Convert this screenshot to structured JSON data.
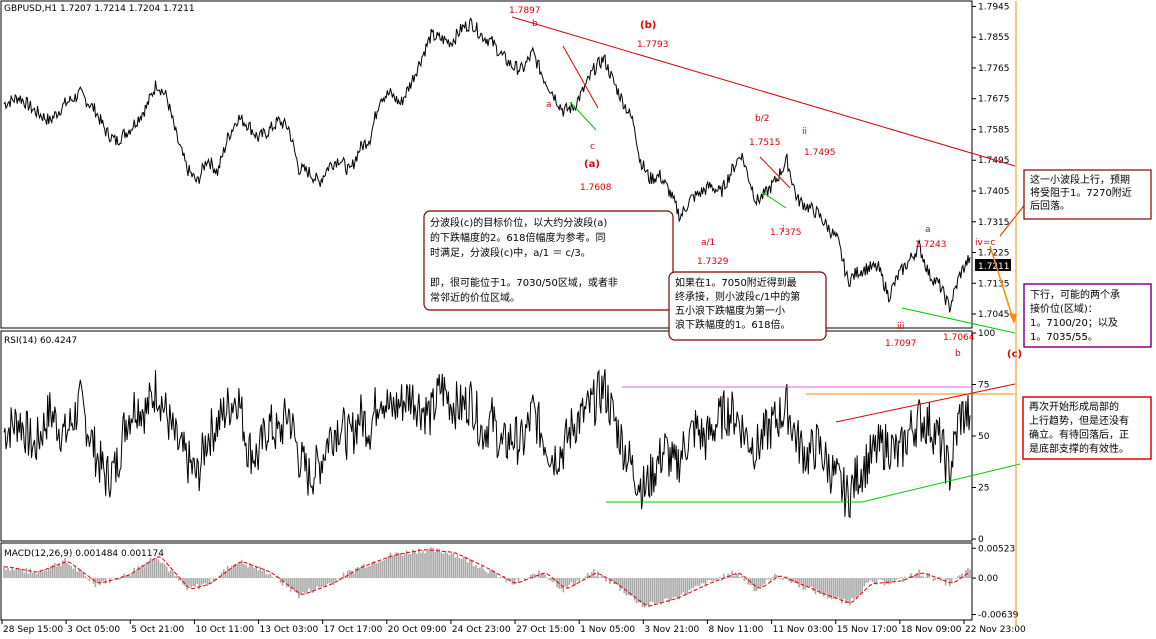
{
  "window": {
    "symbol_info": "GBPUSD,H1  1.7207  1.7214  1.7204  1.7211"
  },
  "colors": {
    "price": "#000000",
    "annot_red": "#e00000",
    "box_border": "#800000",
    "purple": "#8a008a",
    "green": "#00c800",
    "orange": "#ff8c00",
    "magenta": "#e060e0",
    "macd_hist": "#a9a9a9",
    "macd_signal": "#e00000",
    "current_price_bg": "#000000"
  },
  "chart_data": [
    {
      "type": "line",
      "name": "price",
      "yaxis_ticks": [
        "1.7945",
        "1.7855",
        "1.7765",
        "1.7675",
        "1.7585",
        "1.7495",
        "1.7405",
        "1.7315",
        "1.7225",
        "1.7135",
        "1.7045"
      ],
      "ylim": [
        1.701,
        1.7955
      ],
      "current_price": "1.7211",
      "waypoints": [
        [
          0,
          1.766
        ],
        [
          3,
          1.768
        ],
        [
          6,
          1.764
        ],
        [
          9,
          1.761
        ],
        [
          12,
          1.766
        ],
        [
          15,
          1.769
        ],
        [
          18,
          1.764
        ],
        [
          20,
          1.758
        ],
        [
          22,
          1.755
        ],
        [
          25,
          1.759
        ],
        [
          28,
          1.765
        ],
        [
          30,
          1.772
        ],
        [
          32,
          1.768
        ],
        [
          34,
          1.756
        ],
        [
          36,
          1.747
        ],
        [
          38,
          1.743
        ],
        [
          40,
          1.75
        ],
        [
          42,
          1.746
        ],
        [
          44,
          1.756
        ],
        [
          46,
          1.762
        ],
        [
          48,
          1.76
        ],
        [
          50,
          1.756
        ],
        [
          52,
          1.758
        ],
        [
          54,
          1.761
        ],
        [
          56,
          1.759
        ],
        [
          58,
          1.747
        ],
        [
          60,
          1.746
        ],
        [
          62,
          1.743
        ],
        [
          64,
          1.748
        ],
        [
          66,
          1.75
        ],
        [
          68,
          1.746
        ],
        [
          70,
          1.753
        ],
        [
          72,
          1.756
        ],
        [
          74,
          1.768
        ],
        [
          76,
          1.769
        ],
        [
          78,
          1.766
        ],
        [
          80,
          1.772
        ],
        [
          82,
          1.779
        ],
        [
          84,
          1.786
        ],
        [
          86,
          1.785
        ],
        [
          88,
          1.784
        ],
        [
          90,
          1.788
        ],
        [
          92,
          1.7897
        ],
        [
          94,
          1.786
        ],
        [
          96,
          1.784
        ],
        [
          98,
          1.78
        ],
        [
          100,
          1.777
        ],
        [
          102,
          1.776
        ],
        [
          104,
          1.781
        ],
        [
          106,
          1.774
        ],
        [
          108,
          1.769
        ],
        [
          110,
          1.764
        ],
        [
          112,
          1.765
        ],
        [
          114,
          1.77
        ],
        [
          116,
          1.776
        ],
        [
          118,
          1.7793
        ],
        [
          120,
          1.772
        ],
        [
          122,
          1.766
        ],
        [
          124,
          1.76
        ],
        [
          125,
          1.75
        ],
        [
          127,
          1.744
        ],
        [
          129,
          1.745
        ],
        [
          131,
          1.74
        ],
        [
          133,
          1.7329
        ],
        [
          135,
          1.738
        ],
        [
          137,
          1.74
        ],
        [
          139,
          1.742
        ],
        [
          141,
          1.74
        ],
        [
          143,
          1.746
        ],
        [
          145,
          1.7515
        ],
        [
          147,
          1.742
        ],
        [
          148,
          1.7375
        ],
        [
          150,
          1.74
        ],
        [
          152,
          1.744
        ],
        [
          154,
          1.7495
        ],
        [
          156,
          1.738
        ],
        [
          158,
          1.736
        ],
        [
          160,
          1.734
        ],
        [
          162,
          1.73
        ],
        [
          164,
          1.726
        ],
        [
          166,
          1.714
        ],
        [
          168,
          1.717
        ],
        [
          170,
          1.718
        ],
        [
          172,
          1.718
        ],
        [
          174,
          1.7097
        ],
        [
          176,
          1.716
        ],
        [
          178,
          1.72
        ],
        [
          180,
          1.7243
        ],
        [
          182,
          1.716
        ],
        [
          184,
          1.713
        ],
        [
          186,
          1.7064
        ],
        [
          188,
          1.716
        ],
        [
          190,
          1.7211
        ]
      ]
    },
    {
      "type": "line",
      "name": "RSI",
      "label": "RSI(14) 60.4247",
      "yaxis_ticks": [
        "100",
        "75",
        "50",
        "25",
        "0"
      ],
      "ylim": [
        0,
        100
      ],
      "waypoints": [
        [
          0,
          52
        ],
        [
          3,
          58
        ],
        [
          6,
          44
        ],
        [
          9,
          62
        ],
        [
          12,
          50
        ],
        [
          15,
          66
        ],
        [
          18,
          42
        ],
        [
          20,
          30
        ],
        [
          22,
          34
        ],
        [
          24,
          58
        ],
        [
          26,
          66
        ],
        [
          28,
          62
        ],
        [
          30,
          74
        ],
        [
          32,
          60
        ],
        [
          34,
          46
        ],
        [
          36,
          38
        ],
        [
          38,
          30
        ],
        [
          40,
          50
        ],
        [
          42,
          56
        ],
        [
          44,
          64
        ],
        [
          46,
          70
        ],
        [
          48,
          44
        ],
        [
          50,
          40
        ],
        [
          52,
          56
        ],
        [
          54,
          50
        ],
        [
          56,
          62
        ],
        [
          58,
          40
        ],
        [
          60,
          30
        ],
        [
          62,
          36
        ],
        [
          64,
          50
        ],
        [
          66,
          56
        ],
        [
          68,
          48
        ],
        [
          70,
          60
        ],
        [
          72,
          54
        ],
        [
          74,
          72
        ],
        [
          76,
          62
        ],
        [
          78,
          66
        ],
        [
          80,
          70
        ],
        [
          82,
          64
        ],
        [
          84,
          60
        ],
        [
          86,
          74
        ],
        [
          88,
          66
        ],
        [
          90,
          64
        ],
        [
          92,
          68
        ],
        [
          94,
          52
        ],
        [
          96,
          58
        ],
        [
          98,
          44
        ],
        [
          100,
          50
        ],
        [
          102,
          46
        ],
        [
          104,
          62
        ],
        [
          106,
          50
        ],
        [
          108,
          40
        ],
        [
          110,
          44
        ],
        [
          112,
          56
        ],
        [
          114,
          60
        ],
        [
          116,
          66
        ],
        [
          118,
          74
        ],
        [
          120,
          58
        ],
        [
          122,
          44
        ],
        [
          124,
          32
        ],
        [
          126,
          24
        ],
        [
          128,
          34
        ],
        [
          130,
          44
        ],
        [
          132,
          34
        ],
        [
          134,
          46
        ],
        [
          136,
          54
        ],
        [
          138,
          48
        ],
        [
          140,
          56
        ],
        [
          142,
          62
        ],
        [
          144,
          60
        ],
        [
          146,
          50
        ],
        [
          148,
          44
        ],
        [
          150,
          52
        ],
        [
          152,
          58
        ],
        [
          154,
          64
        ],
        [
          156,
          48
        ],
        [
          158,
          40
        ],
        [
          160,
          46
        ],
        [
          162,
          36
        ],
        [
          164,
          28
        ],
        [
          166,
          20
        ],
        [
          168,
          32
        ],
        [
          170,
          38
        ],
        [
          172,
          44
        ],
        [
          174,
          46
        ],
        [
          176,
          40
        ],
        [
          178,
          52
        ],
        [
          180,
          58
        ],
        [
          182,
          56
        ],
        [
          184,
          48
        ],
        [
          186,
          32
        ],
        [
          188,
          60
        ],
        [
          190,
          60
        ]
      ]
    },
    {
      "type": "bar",
      "name": "MACD",
      "label": "MACD(12,26,9)  0.001484  0.001174",
      "yaxis_ticks": [
        "0.00523",
        "0.00",
        "-0.00639"
      ],
      "ylim": [
        -0.007,
        0.0058
      ],
      "histogram_waypoints": [
        [
          0,
          0.002
        ],
        [
          6,
          0.001
        ],
        [
          12,
          0.003
        ],
        [
          18,
          -0.001
        ],
        [
          24,
          0.0005
        ],
        [
          30,
          0.004
        ],
        [
          36,
          -0.002
        ],
        [
          40,
          -0.001
        ],
        [
          46,
          0.003
        ],
        [
          52,
          0.001
        ],
        [
          58,
          -0.003
        ],
        [
          64,
          -0.001
        ],
        [
          70,
          0.002
        ],
        [
          76,
          0.004
        ],
        [
          82,
          0.005
        ],
        [
          88,
          0.0045
        ],
        [
          94,
          0.002
        ],
        [
          100,
          -0.001
        ],
        [
          106,
          0.001
        ],
        [
          110,
          -0.002
        ],
        [
          116,
          0.001
        ],
        [
          120,
          -0.001
        ],
        [
          126,
          -0.005
        ],
        [
          132,
          -0.0035
        ],
        [
          138,
          -0.001
        ],
        [
          144,
          0.001
        ],
        [
          148,
          -0.002
        ],
        [
          152,
          0.0005
        ],
        [
          156,
          -0.001
        ],
        [
          160,
          -0.0025
        ],
        [
          166,
          -0.0045
        ],
        [
          170,
          -0.001
        ],
        [
          176,
          -0.0005
        ],
        [
          180,
          0.001
        ],
        [
          186,
          -0.001
        ],
        [
          190,
          0.0015
        ]
      ]
    }
  ],
  "x_axis": {
    "labels": [
      "28 Sep 15:00",
      "3 Oct 05:00",
      "5 Oct 21:00",
      "10 Oct 11:00",
      "13 Oct 03:00",
      "17 Oct 17:00",
      "20 Oct 09:00",
      "24 Oct 23:00",
      "27 Oct 15:00",
      "1 Nov 05:00",
      "3 Nov 21:00",
      "8 Nov 11:00",
      "11 Nov 03:00",
      "15 Nov 17:00",
      "18 Nov 09:00",
      "22 Nov 23:00"
    ]
  },
  "wave_labels": {
    "top_high": "1.7897",
    "b_small": "b",
    "b_paren": "(b)",
    "p_1_7793": "1.7793",
    "a_small": "a",
    "c_small": "c",
    "a_paren": "(a)",
    "p_1_7608": "1.7608",
    "b2": "b/2",
    "p_1_7515": "1.7515",
    "ii": "ii",
    "p_1_7495": "1.7495",
    "i": "i",
    "p_1_7375": "1.7375",
    "a1": "a/1",
    "p_1_7329": "1.7329",
    "a_right": "a",
    "p_1_7243": "1.7243",
    "iv_c": "iv=c",
    "iii": "iii",
    "p_1_7097": "1.7097",
    "p_1_7064": "1.7064",
    "b_right": "b",
    "c_paren": "(c)"
  },
  "notes": {
    "box1": [
      "分波段(c)的目标价位，以大约分波段(a)",
      "的下跌幅度的2。618倍幅度为参考。同",
      "时满足，分波段(c)中，a/1 ＝ c/3。",
      "",
      "即，很可能位于1。7030/50区域，或者非",
      "常邻近的价位区域。"
    ],
    "box2": [
      "如果在1。7050附近得到最",
      "终承接，则小波段c/1中的第",
      "五小浪下跌幅度为第一小",
      "浪下跌幅度的1。618倍。"
    ],
    "right1": [
      "这一小波段上行，预期",
      "将受阻于1。7270附近",
      "后回落。"
    ],
    "right2": [
      "下行，可能的两个承",
      "接价位(区域)：",
      "1。7100/20；以及",
      "1。7035/55。"
    ],
    "right3": [
      "再次开始形成局部的",
      "上行趋势，但是还没有",
      "确立。有待回落后，正",
      "是底部支撑的有效性。"
    ]
  }
}
